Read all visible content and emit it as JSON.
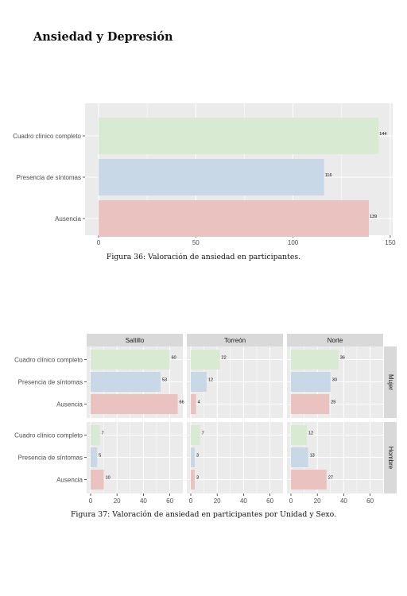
{
  "section_title": "Ansiedad y Depresión",
  "figure36": {
    "caption": "Figura 36: Valoración de ansiedad en participantes."
  },
  "figure37": {
    "caption": "Figura 37: Valoración de ansiedad en participantes por Unidad y Sexo."
  },
  "colors": {
    "cuadro": "#d9ead3",
    "presencia": "#c9d8e6",
    "ausencia": "#eac3c1",
    "panel_bg": "#ebebeb",
    "strip_bg": "#d9d9d9",
    "grid": "#ffffff"
  },
  "chart_data": [
    {
      "type": "bar",
      "orientation": "horizontal",
      "categories": [
        "Cuadro clínico completo",
        "Presencia de síntomas",
        "Ausencia"
      ],
      "values": [
        144,
        116,
        139
      ],
      "data_labels": [
        "144",
        "116",
        "139"
      ],
      "xlim": [
        0,
        150
      ],
      "xticks": [
        0,
        50,
        100,
        150
      ],
      "tick_labels": [
        "0",
        "50",
        "100",
        "150"
      ],
      "grid": true,
      "legend": "none"
    },
    {
      "type": "bar",
      "orientation": "horizontal",
      "facet": "grid",
      "columns": [
        "Saltillo",
        "Torreón",
        "Norte"
      ],
      "rows": [
        "Mujer",
        "Hombre"
      ],
      "categories": [
        "Cuadro clínico completo",
        "Presencia de síntomas",
        "Ausencia"
      ],
      "panels": [
        {
          "row": "Mujer",
          "col": "Saltillo",
          "values": [
            60,
            53,
            66
          ],
          "labels": [
            "60",
            "53",
            "66"
          ]
        },
        {
          "row": "Mujer",
          "col": "Torreón",
          "values": [
            22,
            12,
            4
          ],
          "labels": [
            "22",
            "12",
            "4"
          ]
        },
        {
          "row": "Mujer",
          "col": "Norte",
          "values": [
            36,
            30,
            29
          ],
          "labels": [
            "36",
            "30",
            "29"
          ]
        },
        {
          "row": "Hombre",
          "col": "Saltillo",
          "values": [
            7,
            5,
            10
          ],
          "labels": [
            "7",
            "5",
            "10"
          ]
        },
        {
          "row": "Hombre",
          "col": "Torreón",
          "values": [
            7,
            3,
            3
          ],
          "labels": [
            "7",
            "3",
            "3"
          ]
        },
        {
          "row": "Hombre",
          "col": "Norte",
          "values": [
            12,
            13,
            27
          ],
          "labels": [
            "12",
            "13",
            "27"
          ]
        }
      ],
      "xlim": [
        -3,
        72
      ],
      "xticks": [
        0,
        20,
        40,
        60
      ],
      "tick_labels": [
        "0",
        "20",
        "40",
        "60"
      ],
      "grid": true,
      "legend": "none"
    }
  ]
}
